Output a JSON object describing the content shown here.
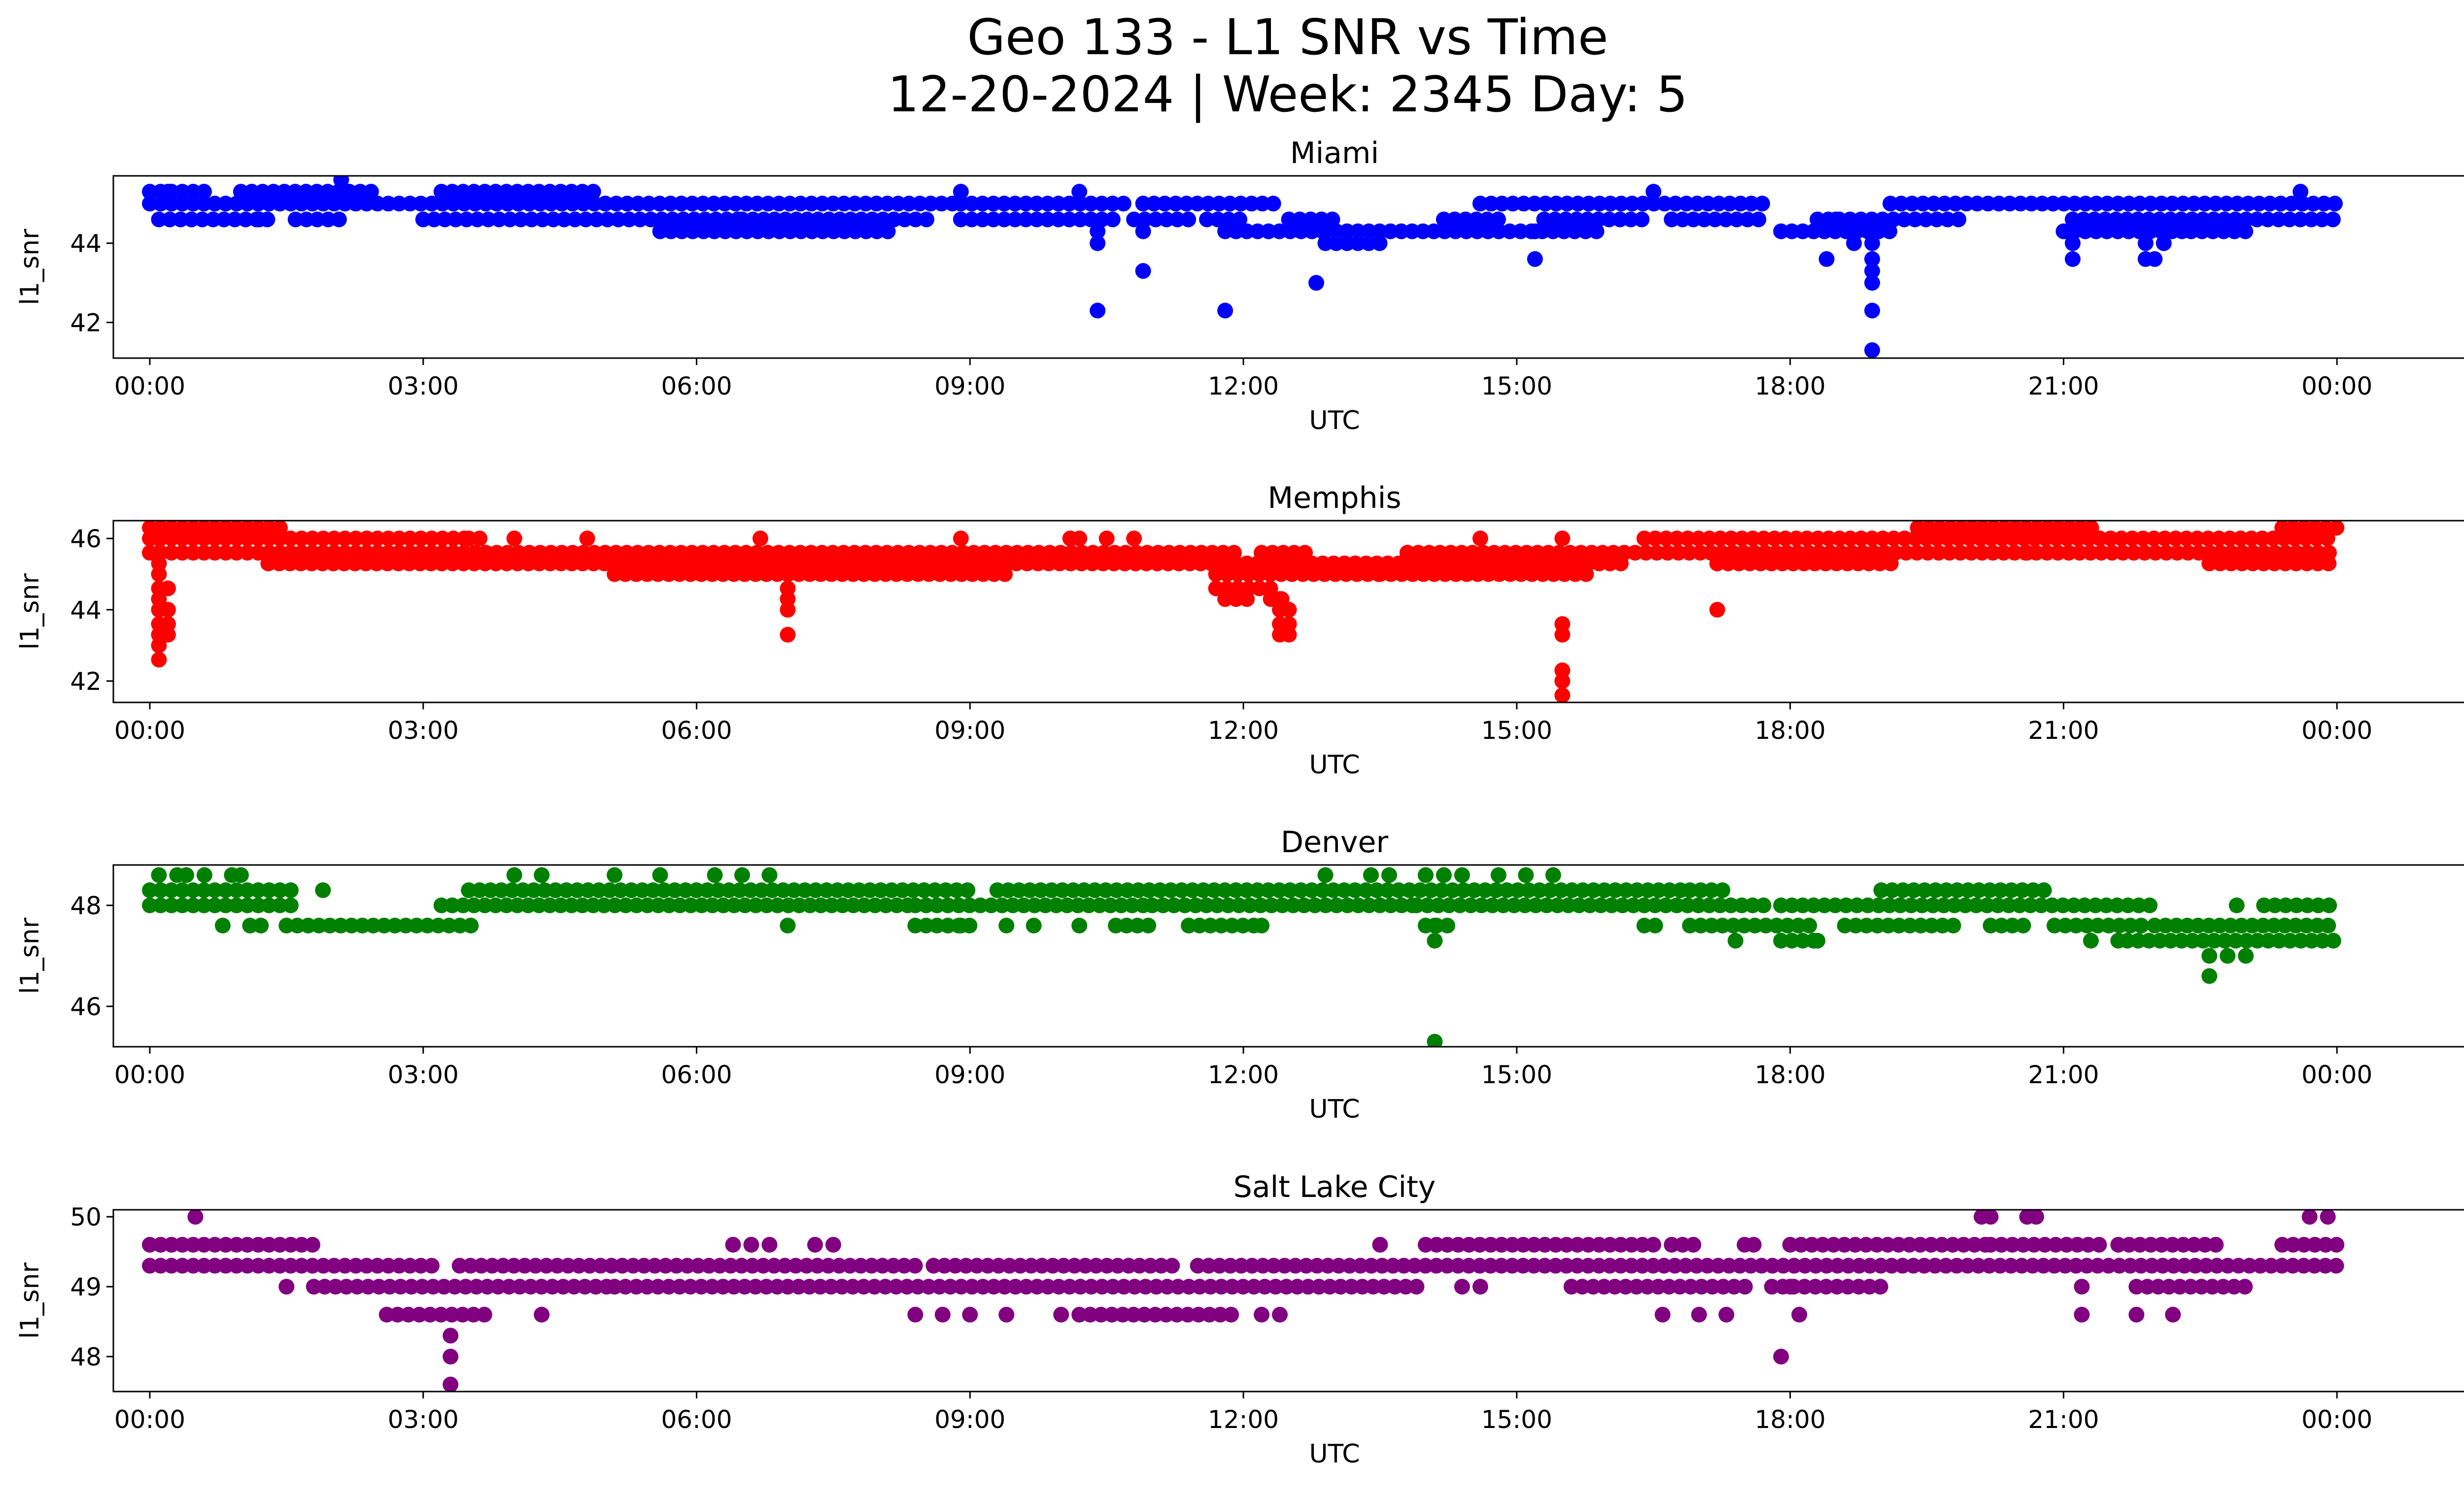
{
  "figure": {
    "title_line1": "Geo 133 - L1 SNR vs Time",
    "title_line2": "12-20-2024 | Week: 2345 Day: 5"
  },
  "chart_data": [
    {
      "type": "scatter",
      "title": "Miami",
      "xlabel": "UTC",
      "ylabel": "l1_snr",
      "color": "#0000ff",
      "x_unit": "hours",
      "xlim": [
        -0.4,
        26.4
      ],
      "ylim": [
        41.1,
        45.7
      ],
      "xticks": [
        0,
        3,
        6,
        9,
        12,
        15,
        18,
        21,
        24
      ],
      "xtick_labels": [
        "00:00",
        "03:00",
        "06:00",
        "09:00",
        "12:00",
        "15:00",
        "18:00",
        "21:00",
        "00:00"
      ],
      "yticks": [
        42,
        44
      ],
      "bands": [
        {
          "y": 45.3,
          "segments": [
            [
              0.0,
              0.6
            ],
            [
              1.0,
              2.5
            ],
            [
              3.2,
              4.9
            ]
          ]
        },
        {
          "y": 45.0,
          "segments": [
            [
              0.0,
              5.0
            ],
            [
              5.0,
              8.9
            ],
            [
              8.9,
              10.8
            ],
            [
              10.9,
              12.4
            ],
            [
              14.6,
              17.8
            ],
            [
              19.1,
              24.0
            ]
          ]
        },
        {
          "y": 44.6,
          "segments": [
            [
              0.1,
              1.3
            ],
            [
              1.6,
              2.1
            ],
            [
              3.0,
              6.5
            ],
            [
              6.5,
              8.6
            ],
            [
              8.9,
              10.6
            ],
            [
              10.8,
              11.5
            ],
            [
              11.6,
              12.0
            ],
            [
              12.5,
              13.0
            ],
            [
              14.2,
              14.9
            ],
            [
              15.3,
              16.4
            ],
            [
              16.7,
              17.7
            ],
            [
              18.3,
              19.9
            ],
            [
              21.1,
              24.0
            ]
          ]
        },
        {
          "y": 44.3,
          "segments": [
            [
              5.6,
              8.2
            ],
            [
              11.8,
              12.9
            ],
            [
              12.9,
              15.9
            ],
            [
              17.9,
              19.2
            ],
            [
              21.0,
              22.3
            ],
            [
              22.4,
              23.0
            ]
          ]
        },
        {
          "y": 44.0,
          "segments": [
            [
              12.9,
              13.6
            ]
          ]
        }
      ],
      "points": [
        [
          0.2,
          45.3
        ],
        [
          2.1,
          45.6
        ],
        [
          8.9,
          45.3
        ],
        [
          10.2,
          45.3
        ],
        [
          16.5,
          45.3
        ],
        [
          23.6,
          45.3
        ],
        [
          1.2,
          44.6
        ],
        [
          10.4,
          44.3
        ],
        [
          10.4,
          44.0
        ],
        [
          10.9,
          44.3
        ],
        [
          15.2,
          44.3
        ],
        [
          18.5,
          44.6
        ],
        [
          21.1,
          44.3
        ],
        [
          22.3,
          44.3
        ],
        [
          10.4,
          42.3
        ],
        [
          10.9,
          43.3
        ],
        [
          11.8,
          42.3
        ],
        [
          12.8,
          43.0
        ],
        [
          15.2,
          43.6
        ],
        [
          18.4,
          43.6
        ],
        [
          18.7,
          44.0
        ],
        [
          18.9,
          44.0
        ],
        [
          18.9,
          43.6
        ],
        [
          18.9,
          43.3
        ],
        [
          18.9,
          43.0
        ],
        [
          18.9,
          42.3
        ],
        [
          18.9,
          41.3
        ],
        [
          21.1,
          43.6
        ],
        [
          21.9,
          44.0
        ],
        [
          21.9,
          43.6
        ],
        [
          22.0,
          43.6
        ],
        [
          21.1,
          44.0
        ],
        [
          22.1,
          44.0
        ]
      ]
    },
    {
      "type": "scatter",
      "title": "Memphis",
      "xlabel": "UTC",
      "ylabel": "l1_snr",
      "color": "#ff0000",
      "x_unit": "hours",
      "xlim": [
        -0.4,
        26.4
      ],
      "ylim": [
        41.4,
        46.5
      ],
      "xticks": [
        0,
        3,
        6,
        9,
        12,
        15,
        18,
        21,
        24
      ],
      "xtick_labels": [
        "00:00",
        "03:00",
        "06:00",
        "09:00",
        "12:00",
        "15:00",
        "18:00",
        "21:00",
        "00:00"
      ],
      "yticks": [
        42,
        44,
        46
      ],
      "bands": [
        {
          "y": 46.3,
          "segments": [
            [
              0.0,
              1.5
            ],
            [
              19.4,
              21.4
            ],
            [
              23.4,
              24.0
            ]
          ]
        },
        {
          "y": 46.0,
          "segments": [
            [
              0.0,
              3.5
            ],
            [
              3.5,
              3.7
            ],
            [
              16.4,
              24.0
            ]
          ]
        },
        {
          "y": 45.6,
          "segments": [
            [
              0.0,
              11.9
            ],
            [
              12.2,
              12.7
            ],
            [
              13.8,
              24.0
            ]
          ]
        },
        {
          "y": 45.3,
          "segments": [
            [
              1.3,
              11.8
            ],
            [
              11.8,
              14.0
            ],
            [
              14.0,
              16.2
            ],
            [
              17.2,
              19.2
            ],
            [
              22.6,
              24.0
            ]
          ]
        },
        {
          "y": 45.0,
          "segments": [
            [
              5.1,
              9.4
            ],
            [
              11.7,
              13.5
            ],
            [
              13.5,
              15.8
            ]
          ]
        },
        {
          "y": 44.6,
          "segments": [
            [
              11.7,
              12.4
            ]
          ]
        },
        {
          "y": 44.3,
          "segments": [
            [
              11.8,
              12.1
            ],
            [
              12.3,
              12.5
            ]
          ]
        }
      ],
      "points": [
        [
          0.1,
          46.0
        ],
        [
          0.1,
          45.6
        ],
        [
          0.1,
          45.3
        ],
        [
          0.1,
          45.0
        ],
        [
          0.1,
          44.6
        ],
        [
          0.1,
          44.3
        ],
        [
          0.1,
          44.0
        ],
        [
          0.1,
          43.6
        ],
        [
          0.1,
          43.3
        ],
        [
          0.1,
          43.0
        ],
        [
          0.1,
          42.6
        ],
        [
          0.2,
          43.6
        ],
        [
          0.2,
          43.3
        ],
        [
          0.2,
          44.0
        ],
        [
          0.2,
          44.6
        ],
        [
          4.0,
          46.0
        ],
        [
          4.8,
          46.0
        ],
        [
          6.7,
          46.0
        ],
        [
          7.0,
          45.0
        ],
        [
          7.0,
          44.6
        ],
        [
          7.0,
          44.3
        ],
        [
          7.0,
          44.0
        ],
        [
          7.0,
          43.3
        ],
        [
          8.9,
          46.0
        ],
        [
          10.1,
          46.0
        ],
        [
          10.2,
          46.0
        ],
        [
          10.5,
          46.0
        ],
        [
          10.8,
          46.0
        ],
        [
          12.4,
          44.3
        ],
        [
          12.4,
          44.0
        ],
        [
          12.4,
          43.6
        ],
        [
          12.4,
          43.3
        ],
        [
          12.5,
          43.6
        ],
        [
          12.5,
          44.0
        ],
        [
          12.5,
          43.3
        ],
        [
          13.8,
          45.6
        ],
        [
          14.6,
          46.0
        ],
        [
          15.5,
          46.0
        ],
        [
          15.5,
          43.6
        ],
        [
          15.5,
          43.3
        ],
        [
          15.5,
          42.3
        ],
        [
          15.5,
          42.0
        ],
        [
          15.5,
          41.6
        ],
        [
          17.2,
          44.0
        ],
        [
          17.2,
          45.3
        ],
        [
          20.6,
          45.6
        ]
      ]
    },
    {
      "type": "scatter",
      "title": "Denver",
      "xlabel": "UTC",
      "ylabel": "l1_snr",
      "color": "#008000",
      "x_unit": "hours",
      "xlim": [
        -0.4,
        26.4
      ],
      "ylim": [
        45.2,
        48.8
      ],
      "xticks": [
        0,
        3,
        6,
        9,
        12,
        15,
        18,
        21,
        24
      ],
      "xtick_labels": [
        "00:00",
        "03:00",
        "06:00",
        "09:00",
        "12:00",
        "15:00",
        "18:00",
        "21:00",
        "00:00"
      ],
      "yticks": [
        46,
        48
      ],
      "bands": [
        {
          "y": 48.3,
          "segments": [
            [
              0.0,
              1.6
            ],
            [
              3.5,
              9.0
            ],
            [
              9.3,
              16.8
            ],
            [
              16.9,
              17.3
            ],
            [
              19.0,
              20.9
            ]
          ]
        },
        {
          "y": 48.0,
          "segments": [
            [
              0.0,
              1.6
            ],
            [
              3.2,
              8.4
            ],
            [
              8.4,
              11.0
            ],
            [
              11.0,
              13.9
            ],
            [
              13.9,
              17.8
            ],
            [
              17.9,
              22.0
            ],
            [
              23.2,
              24.0
            ]
          ]
        },
        {
          "y": 47.6,
          "segments": [
            [
              0.8,
              0.8
            ],
            [
              1.1,
              1.3
            ],
            [
              1.5,
              3.6
            ],
            [
              8.4,
              9.1
            ],
            [
              10.6,
              11.0
            ],
            [
              11.4,
              12.2
            ],
            [
              14.0,
              14.3
            ],
            [
              16.4,
              16.6
            ],
            [
              16.9,
              18.3
            ],
            [
              18.6,
              19.8
            ],
            [
              20.2,
              20.6
            ],
            [
              20.9,
              21.9
            ],
            [
              22.0,
              24.0
            ]
          ]
        },
        {
          "y": 47.3,
          "segments": [
            [
              17.9,
              18.3
            ],
            [
              21.7,
              24.0
            ]
          ]
        }
      ],
      "points": [
        [
          0.1,
          48.6
        ],
        [
          0.3,
          48.6
        ],
        [
          0.4,
          48.6
        ],
        [
          0.6,
          48.6
        ],
        [
          0.9,
          48.6
        ],
        [
          1.0,
          48.6
        ],
        [
          1.9,
          48.3
        ],
        [
          4.0,
          48.6
        ],
        [
          4.3,
          48.6
        ],
        [
          5.1,
          48.6
        ],
        [
          5.6,
          48.6
        ],
        [
          6.2,
          48.6
        ],
        [
          6.5,
          48.6
        ],
        [
          6.8,
          48.6
        ],
        [
          7.0,
          47.6
        ],
        [
          8.9,
          47.6
        ],
        [
          9.4,
          47.6
        ],
        [
          9.7,
          47.6
        ],
        [
          10.2,
          47.6
        ],
        [
          12.2,
          47.6
        ],
        [
          12.9,
          48.6
        ],
        [
          13.4,
          48.6
        ],
        [
          13.6,
          48.6
        ],
        [
          14.0,
          48.6
        ],
        [
          14.2,
          48.6
        ],
        [
          14.4,
          48.6
        ],
        [
          14.8,
          48.6
        ],
        [
          15.1,
          48.6
        ],
        [
          15.4,
          48.6
        ],
        [
          14.1,
          47.6
        ],
        [
          14.1,
          47.3
        ],
        [
          14.1,
          45.3
        ],
        [
          17.4,
          47.3
        ],
        [
          18.3,
          47.3
        ],
        [
          21.3,
          47.3
        ],
        [
          22.6,
          47.0
        ],
        [
          22.6,
          46.6
        ],
        [
          22.8,
          47.0
        ],
        [
          23.0,
          47.0
        ],
        [
          22.9,
          48.0
        ],
        [
          21.6,
          47.3
        ]
      ]
    },
    {
      "type": "scatter",
      "title": "Salt Lake City",
      "xlabel": "UTC",
      "ylabel": "l1_snr",
      "color": "#800080",
      "x_unit": "hours",
      "xlim": [
        -0.4,
        26.4
      ],
      "ylim": [
        47.5,
        50.1
      ],
      "xticks": [
        0,
        3,
        6,
        9,
        12,
        15,
        18,
        21,
        24
      ],
      "xtick_labels": [
        "00:00",
        "03:00",
        "06:00",
        "09:00",
        "12:00",
        "15:00",
        "18:00",
        "21:00",
        "00:00"
      ],
      "yticks": [
        48,
        49,
        50
      ],
      "bands": [
        {
          "y": 49.6,
          "segments": [
            [
              0.0,
              1.8
            ],
            [
              14.0,
              16.5
            ],
            [
              16.7,
              17.0
            ],
            [
              18.0,
              20.2
            ],
            [
              20.2,
              21.4
            ],
            [
              21.6,
              22.7
            ],
            [
              23.4,
              24.0
            ]
          ]
        },
        {
          "y": 49.3,
          "segments": [
            [
              0.0,
              3.1
            ],
            [
              3.4,
              8.4
            ],
            [
              8.6,
              11.3
            ],
            [
              11.5,
              24.0
            ]
          ]
        },
        {
          "y": 49.0,
          "segments": [
            [
              1.8,
              5.1
            ],
            [
              5.1,
              7.0
            ],
            [
              7.0,
              14.0
            ],
            [
              15.6,
              17.6
            ],
            [
              17.8,
              19.0
            ],
            [
              21.8,
              23.0
            ]
          ]
        },
        {
          "y": 48.6,
          "segments": [
            [
              2.6,
              3.7
            ],
            [
              10.2,
              11.9
            ]
          ]
        }
      ],
      "points": [
        [
          0.5,
          50.0
        ],
        [
          6.4,
          49.6
        ],
        [
          6.6,
          49.6
        ],
        [
          6.8,
          49.6
        ],
        [
          7.3,
          49.6
        ],
        [
          7.5,
          49.6
        ],
        [
          13.5,
          49.6
        ],
        [
          17.5,
          49.6
        ],
        [
          17.6,
          49.6
        ],
        [
          20.1,
          50.0
        ],
        [
          20.2,
          50.0
        ],
        [
          20.6,
          50.0
        ],
        [
          20.7,
          50.0
        ],
        [
          23.7,
          50.0
        ],
        [
          23.9,
          50.0
        ],
        [
          1.5,
          49.0
        ],
        [
          14.4,
          49.0
        ],
        [
          14.6,
          49.0
        ],
        [
          18.0,
          49.0
        ],
        [
          21.2,
          49.0
        ],
        [
          4.3,
          48.6
        ],
        [
          8.4,
          48.6
        ],
        [
          8.7,
          48.6
        ],
        [
          9.0,
          48.6
        ],
        [
          9.4,
          48.6
        ],
        [
          10.0,
          48.6
        ],
        [
          12.2,
          48.6
        ],
        [
          12.4,
          48.6
        ],
        [
          16.6,
          48.6
        ],
        [
          17.0,
          48.6
        ],
        [
          17.3,
          48.6
        ],
        [
          18.1,
          48.6
        ],
        [
          21.2,
          48.6
        ],
        [
          21.8,
          48.6
        ],
        [
          22.2,
          48.6
        ],
        [
          3.3,
          48.3
        ],
        [
          3.3,
          48.0
        ],
        [
          3.3,
          47.6
        ],
        [
          17.9,
          48.0
        ]
      ]
    }
  ]
}
